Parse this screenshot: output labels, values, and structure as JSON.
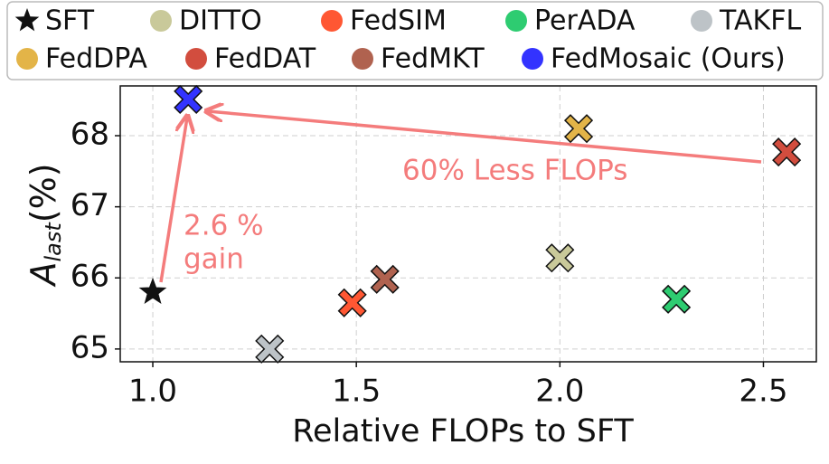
{
  "chart_data": {
    "type": "scatter",
    "x_label": "Relative FLOPs to SFT",
    "y_label": {
      "main": "A",
      "sub": "last",
      "suffix": "(%)"
    },
    "xlim": [
      0.92,
      2.63
    ],
    "ylim": [
      64.82,
      68.7
    ],
    "xticks": [
      {
        "value": 1,
        "label": "1.0"
      },
      1.5,
      {
        "value": 2,
        "label": "2.0"
      },
      2.5
    ],
    "yticks": [
      65,
      66,
      67,
      68
    ],
    "grid": true,
    "legend": "top",
    "annotations": [
      "60% Less FLOPs",
      "2.6 %",
      "gain"
    ],
    "series": [
      {
        "name": "SFT",
        "color": "#111111",
        "marker": "star",
        "x": [
          1.0
        ],
        "values": [
          65.8
        ]
      },
      {
        "name": "DITTO",
        "color": "#c9c99a",
        "marker": "x",
        "x": [
          2.0
        ],
        "values": [
          66.28
        ]
      },
      {
        "name": "FedSIM",
        "color": "#ff5733",
        "marker": "x",
        "x": [
          1.49
        ],
        "values": [
          65.65
        ]
      },
      {
        "name": "PerADA",
        "color": "#2ecc71",
        "marker": "x",
        "x": [
          2.286
        ],
        "values": [
          65.7
        ]
      },
      {
        "name": "TAKFL",
        "color": "#bdc3c7",
        "marker": "x",
        "x": [
          1.287
        ],
        "values": [
          65.0
        ]
      },
      {
        "name": "FedDPA",
        "color": "#e3b448",
        "marker": "x",
        "x": [
          2.046
        ],
        "values": [
          68.1
        ]
      },
      {
        "name": "FedDAT",
        "color": "#d24d3e",
        "marker": "x",
        "x": [
          2.557
        ],
        "values": [
          67.77
        ]
      },
      {
        "name": "FedMKT",
        "color": "#b0624f",
        "marker": "x",
        "x": [
          1.57
        ],
        "values": [
          65.98
        ]
      },
      {
        "name": "FedMosaic (Ours)",
        "color": "#3333ff",
        "marker": "x",
        "x": [
          1.087
        ],
        "values": [
          68.51
        ]
      }
    ]
  }
}
